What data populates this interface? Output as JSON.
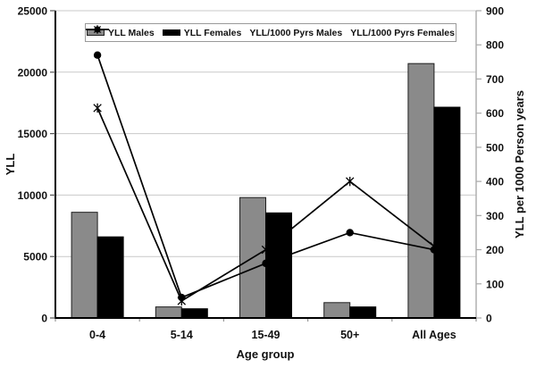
{
  "figure": {
    "background": "#ffffff",
    "gridline_color": "#c9c9c9",
    "secondary_axis_color": "#aaaaaa",
    "primary_axis_color": "#000000"
  },
  "chart_data": {
    "type": "bar",
    "subtype": "bar+line dual axis",
    "categories": [
      "0-4",
      "5-14",
      "15-49",
      "50+",
      "All Ages"
    ],
    "bar_series": [
      {
        "name": "YLL Males",
        "axis": "left",
        "color": "#8a8a8a",
        "border": "#1f1f1f",
        "values": [
          8600,
          900,
          9800,
          1250,
          20700
        ]
      },
      {
        "name": "YLL Females",
        "axis": "left",
        "color": "#000000",
        "border": "#000000",
        "values": [
          6600,
          750,
          8550,
          900,
          17150
        ]
      }
    ],
    "line_series": [
      {
        "name": "YLL/1000 Pyrs Males",
        "axis": "right",
        "marker": "circle",
        "color": "#000000",
        "values": [
          770,
          60,
          160,
          250,
          200
        ]
      },
      {
        "name": "YLL/1000 Pyrs Females",
        "axis": "right",
        "marker": "star",
        "color": "#000000",
        "values": [
          615,
          50,
          200,
          400,
          210
        ]
      }
    ],
    "xlabel": "Age group",
    "left_axis": {
      "label": "YLL",
      "min": 0,
      "max": 25000,
      "tick_step": 5000,
      "tick_labels": [
        "0",
        "5000",
        "10000",
        "15000",
        "20000",
        "25000"
      ]
    },
    "right_axis": {
      "label": "YLL per 1000 Person years",
      "min": 0,
      "max": 900,
      "tick_step": 100,
      "tick_labels": [
        "0",
        "100",
        "200",
        "300",
        "400",
        "500",
        "600",
        "700",
        "800",
        "900"
      ]
    },
    "grid": true,
    "legend_position": "top-center"
  }
}
